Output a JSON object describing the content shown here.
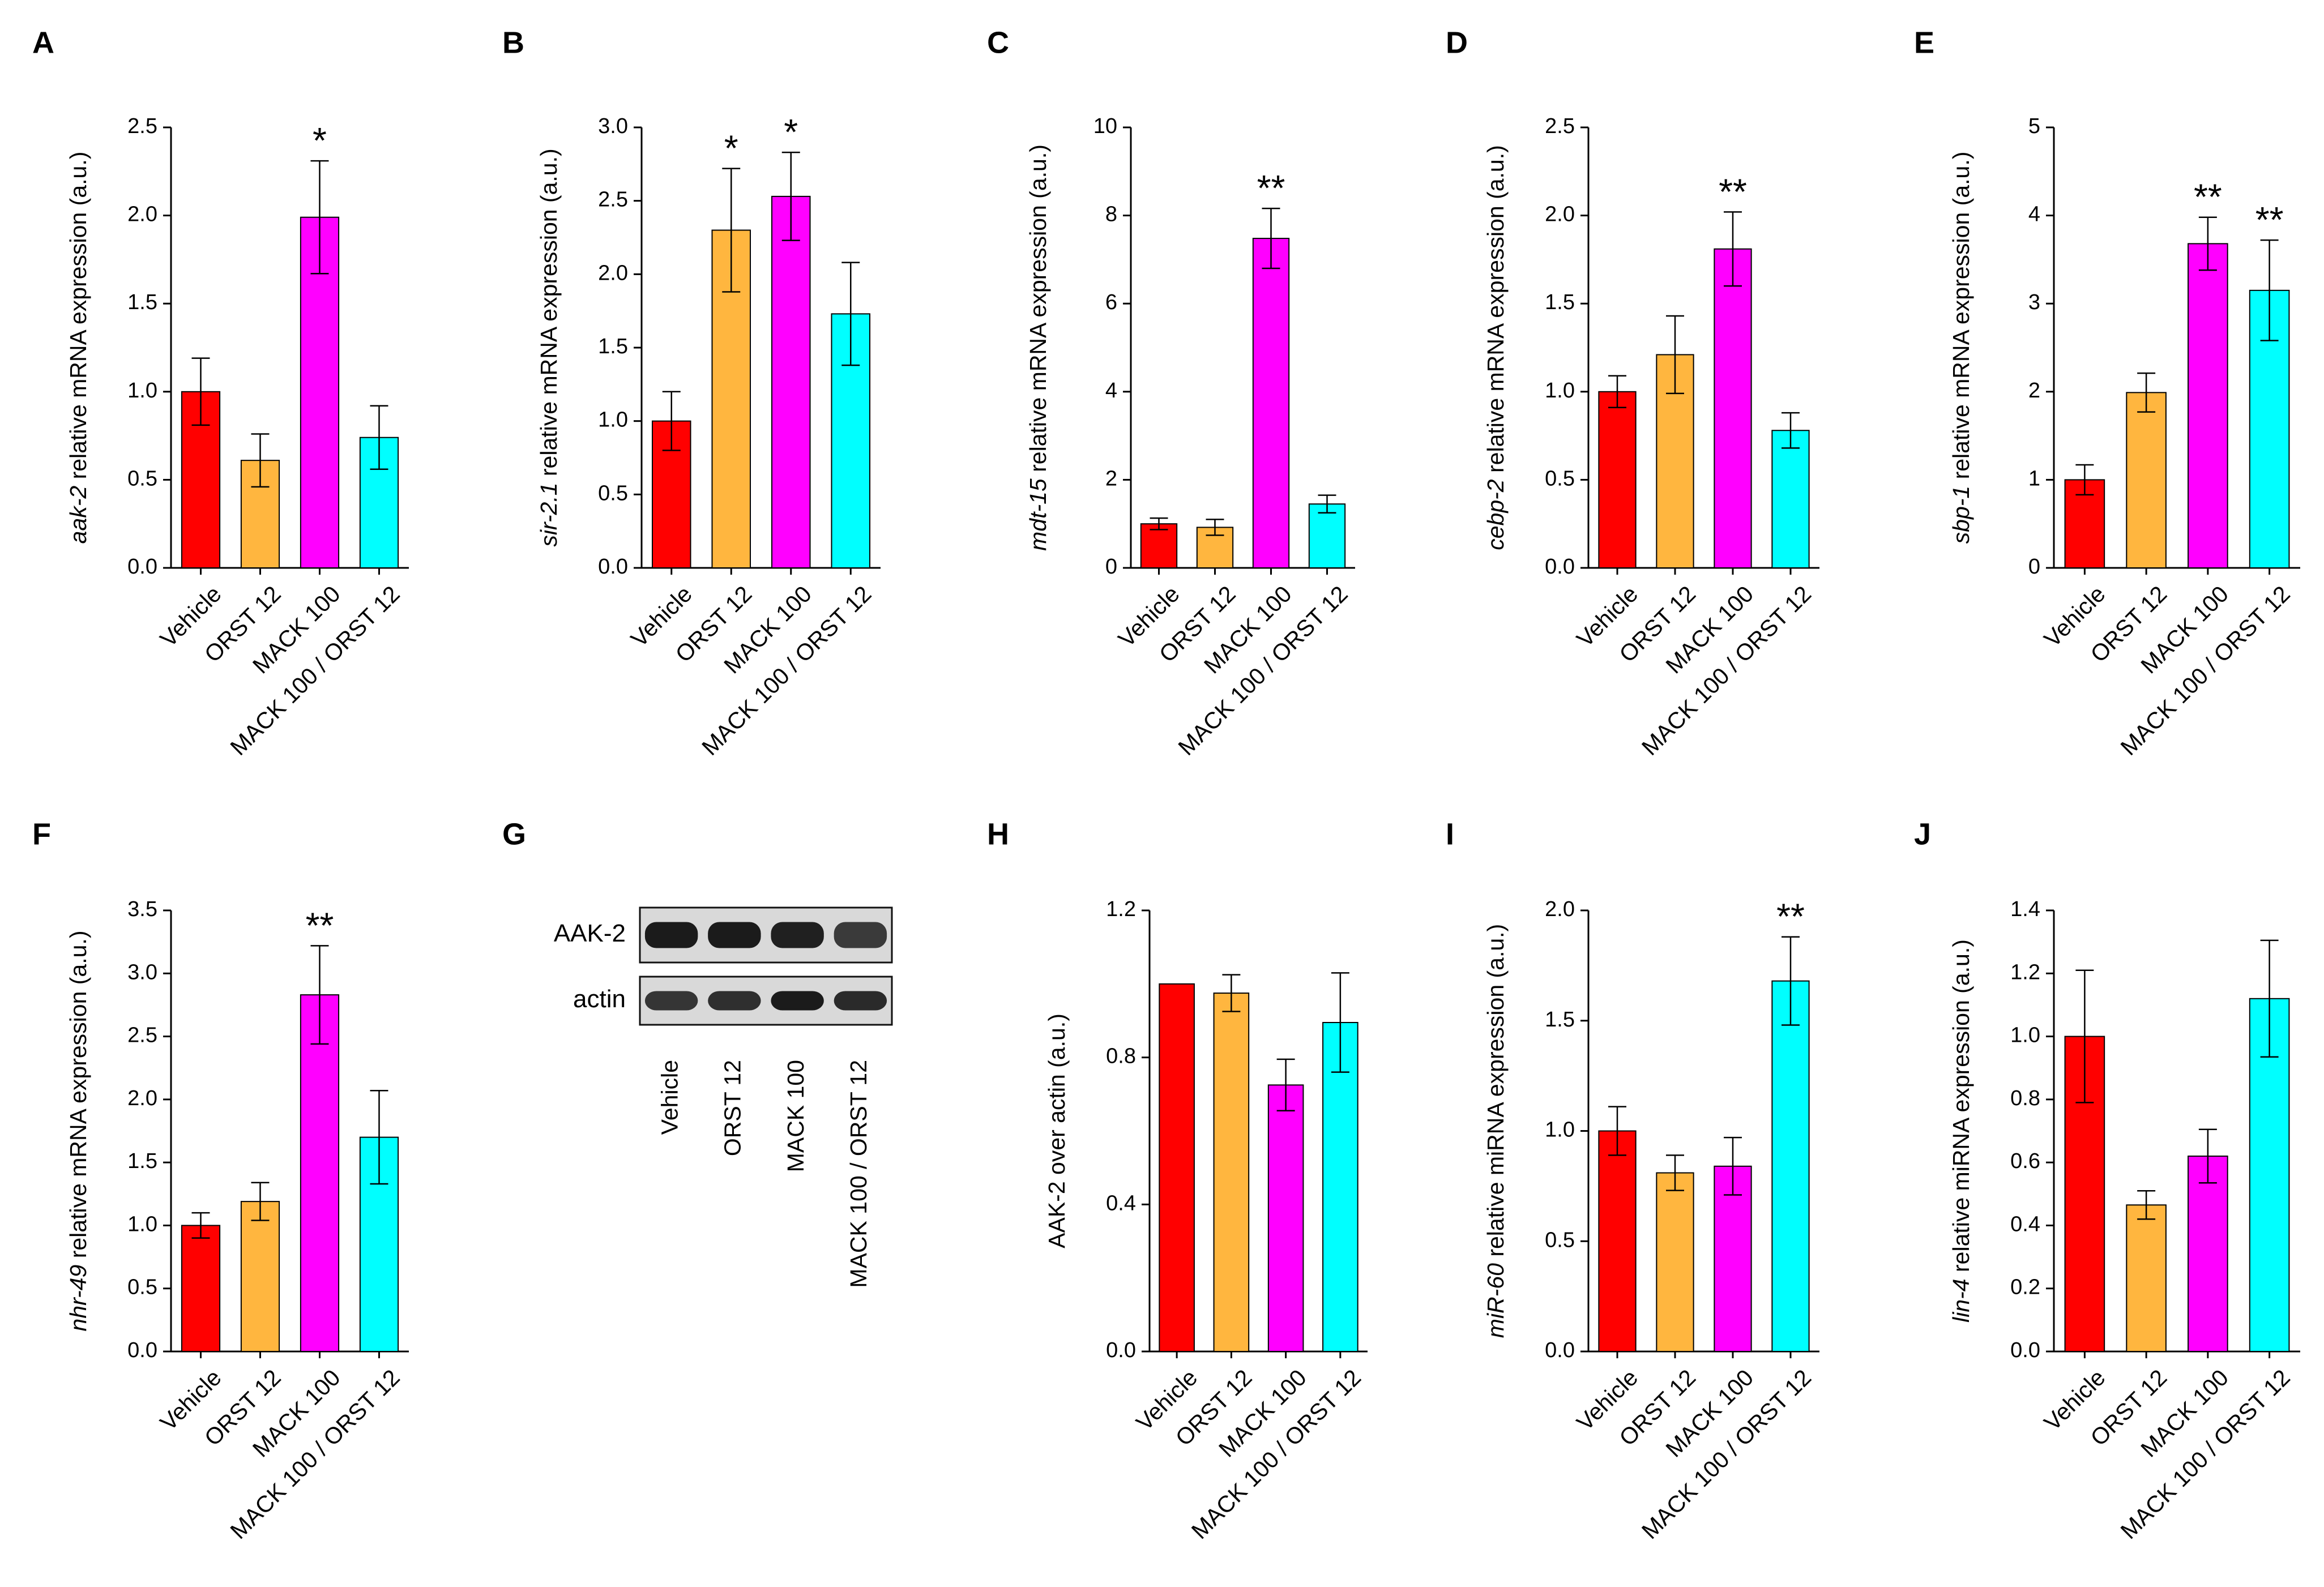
{
  "figure": {
    "categories": [
      "Vehicle",
      "ORST 12",
      "MACK 100",
      "MACK 100 / ORST 12"
    ],
    "colors": [
      "#ff0000",
      "#ffb63f",
      "#ff00ff",
      "#00ffff"
    ]
  },
  "chart_data": [
    {
      "panel": "A",
      "type": "bar",
      "title": "",
      "xlabel": "",
      "ylabel_gene": "aak-2",
      "ylabel_rest": " relative mRNA expression (a.u.)",
      "categories": [
        "Vehicle",
        "ORST 12",
        "MACK 100",
        "MACK 100 / ORST 12"
      ],
      "values": [
        1.0,
        0.61,
        1.99,
        0.74
      ],
      "errors": [
        0.19,
        0.15,
        0.32,
        0.18
      ],
      "significance": [
        "",
        "",
        "*",
        ""
      ],
      "ylim": [
        0,
        2.5
      ],
      "yticks": [
        "0.0",
        "0.5",
        "1.0",
        "1.5",
        "2.0",
        "2.5"
      ]
    },
    {
      "panel": "B",
      "type": "bar",
      "title": "",
      "xlabel": "",
      "ylabel_gene": "sir-2.1",
      "ylabel_rest": " relative mRNA expression (a.u.)",
      "categories": [
        "Vehicle",
        "ORST 12",
        "MACK 100",
        "MACK 100 / ORST 12"
      ],
      "values": [
        1.0,
        2.3,
        2.53,
        1.73
      ],
      "errors": [
        0.2,
        0.42,
        0.3,
        0.35
      ],
      "significance": [
        "",
        "*",
        "*",
        ""
      ],
      "ylim": [
        0,
        3.0
      ],
      "yticks": [
        "0.0",
        "0.5",
        "1.0",
        "1.5",
        "2.0",
        "2.5",
        "3.0"
      ]
    },
    {
      "panel": "C",
      "type": "bar",
      "title": "",
      "xlabel": "",
      "ylabel_gene": "mdt-15",
      "ylabel_rest": " relative mRNA expression (a.u.)",
      "categories": [
        "Vehicle",
        "ORST 12",
        "MACK 100",
        "MACK 100 / ORST 12"
      ],
      "values": [
        1.0,
        0.92,
        7.48,
        1.45
      ],
      "errors": [
        0.13,
        0.18,
        0.68,
        0.2
      ],
      "significance": [
        "",
        "",
        "**",
        ""
      ],
      "ylim": [
        0,
        10
      ],
      "yticks": [
        "0",
        "2",
        "4",
        "6",
        "8",
        "10"
      ]
    },
    {
      "panel": "D",
      "type": "bar",
      "title": "",
      "xlabel": "",
      "ylabel_gene": "cebp-2",
      "ylabel_rest": " relative mRNA expression (a.u.)",
      "categories": [
        "Vehicle",
        "ORST 12",
        "MACK 100",
        "MACK 100 / ORST 12"
      ],
      "values": [
        1.0,
        1.21,
        1.81,
        0.78
      ],
      "errors": [
        0.09,
        0.22,
        0.21,
        0.1
      ],
      "significance": [
        "",
        "",
        "**",
        ""
      ],
      "ylim": [
        0,
        2.5
      ],
      "yticks": [
        "0.0",
        "0.5",
        "1.0",
        "1.5",
        "2.0",
        "2.5"
      ]
    },
    {
      "panel": "E",
      "type": "bar",
      "title": "",
      "xlabel": "",
      "ylabel_gene": "sbp-1",
      "ylabel_rest": " relative mRNA expression (a.u.)",
      "categories": [
        "Vehicle",
        "ORST 12",
        "MACK 100",
        "MACK 100 / ORST 12"
      ],
      "values": [
        1.0,
        1.99,
        3.68,
        3.15
      ],
      "errors": [
        0.17,
        0.22,
        0.3,
        0.57
      ],
      "significance": [
        "",
        "",
        "**",
        "**"
      ],
      "ylim": [
        0,
        5
      ],
      "yticks": [
        "0",
        "1",
        "2",
        "3",
        "4",
        "5"
      ]
    },
    {
      "panel": "F",
      "type": "bar",
      "title": "",
      "xlabel": "",
      "ylabel_gene": "nhr-49",
      "ylabel_rest": " relative mRNA expression (a.u.)",
      "categories": [
        "Vehicle",
        "ORST 12",
        "MACK 100",
        "MACK 100 / ORST 12"
      ],
      "values": [
        1.0,
        1.19,
        2.83,
        1.7
      ],
      "errors": [
        0.1,
        0.15,
        0.39,
        0.37
      ],
      "significance": [
        "",
        "",
        "**",
        ""
      ],
      "ylim": [
        0,
        3.5
      ],
      "yticks": [
        "0.0",
        "0.5",
        "1.0",
        "1.5",
        "2.0",
        "2.5",
        "3.0",
        "3.5"
      ]
    },
    {
      "panel": "H",
      "type": "bar",
      "title": "",
      "xlabel": "",
      "ylabel_gene": "",
      "ylabel_rest": "AAK-2 over actin (a.u.)",
      "categories": [
        "Vehicle",
        "ORST 12",
        "MACK 100",
        "MACK 100 / ORST 12"
      ],
      "values": [
        1.0,
        0.975,
        0.725,
        0.895
      ],
      "errors": [
        0.0,
        0.05,
        0.07,
        0.135
      ],
      "significance": [
        "",
        "",
        "",
        ""
      ],
      "ylim": [
        0,
        1.2
      ],
      "yticks": [
        "0.0",
        "0.4",
        "0.8",
        "1.2"
      ]
    },
    {
      "panel": "I",
      "type": "bar",
      "title": "",
      "xlabel": "",
      "ylabel_gene": "miR-60",
      "ylabel_rest": " relative miRNA expression (a.u.)",
      "categories": [
        "Vehicle",
        "ORST 12",
        "MACK 100",
        "MACK 100 / ORST 12"
      ],
      "values": [
        1.0,
        0.81,
        0.84,
        1.68
      ],
      "errors": [
        0.11,
        0.08,
        0.13,
        0.2
      ],
      "significance": [
        "",
        "",
        "",
        "**"
      ],
      "ylim": [
        0,
        2.0
      ],
      "yticks": [
        "0.0",
        "0.5",
        "1.0",
        "1.5",
        "2.0"
      ]
    },
    {
      "panel": "J",
      "type": "bar",
      "title": "",
      "xlabel": "",
      "ylabel_gene": "lin-4",
      "ylabel_rest": " relative miRNA expression (a.u.)",
      "categories": [
        "Vehicle",
        "ORST 12",
        "MACK 100",
        "MACK 100 / ORST 12"
      ],
      "values": [
        1.0,
        0.465,
        0.62,
        1.12
      ],
      "errors": [
        0.21,
        0.045,
        0.085,
        0.185
      ],
      "significance": [
        "",
        "",
        "",
        ""
      ],
      "ylim": [
        0,
        1.4
      ],
      "yticks": [
        "0.0",
        "0.2",
        "0.4",
        "0.6",
        "0.8",
        "1.0",
        "1.2",
        "1.4"
      ]
    }
  ],
  "blot": {
    "panel": "G",
    "rows": [
      "AAK-2",
      "actin"
    ],
    "lanes": [
      "Vehicle",
      "ORST 12",
      "MACK 100",
      "MACK 100 / ORST 12"
    ]
  }
}
